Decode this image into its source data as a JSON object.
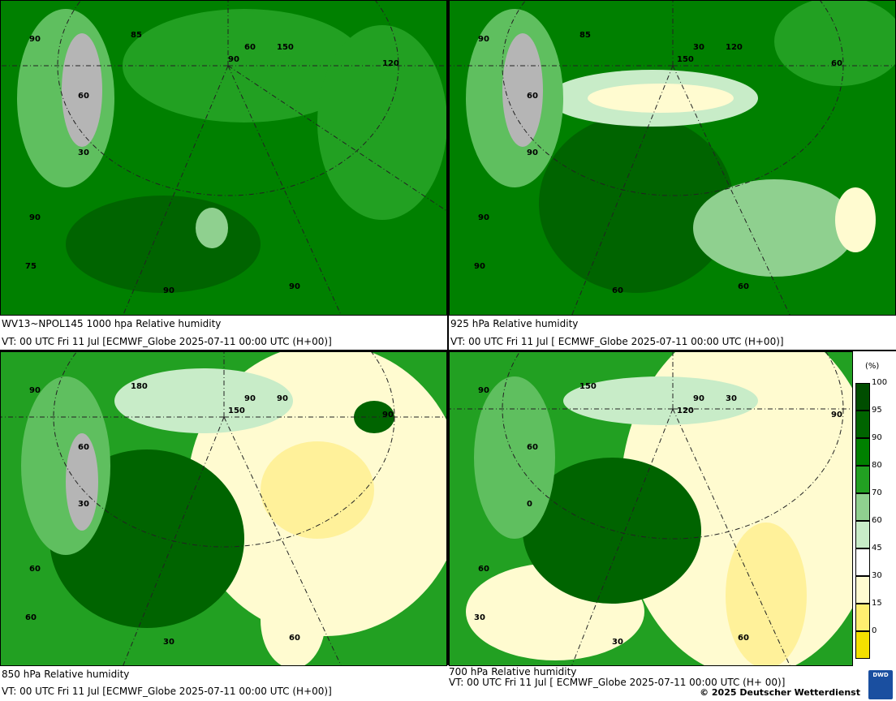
{
  "panels": [
    {
      "caption1": "WV13~NPOL145 1000 hpa Relative humidity",
      "caption2": "VT: 00 UTC Fri  11 Jul [ECMWF_Globe 2025-07-11 00:00 UTC  (H+00)]",
      "labels": [
        "90",
        "60",
        "90",
        "90",
        "90",
        "30",
        "75",
        "60",
        "120",
        "150",
        "90",
        "85"
      ]
    },
    {
      "caption1": "925 hPa Relative humidity",
      "caption2": "VT: 00 UTC Fri  11 Jul [ ECMWF_Globe 2025-07-11 00:00 UTC (H+00)]",
      "labels": [
        "90",
        "60",
        "90",
        "60",
        "60",
        "90",
        "90",
        "30",
        "60",
        "120",
        "150",
        "85"
      ]
    },
    {
      "caption1": "850 hPa  Relative humidity",
      "caption2": "VT: 00 UTC Fri  11 Jul [ECMWF_Globe 2025-07-11 00:00 UTC (H+00)]",
      "labels": [
        "90",
        "60",
        "60",
        "30",
        "60",
        "30",
        "60",
        "90",
        "90",
        "90",
        "150",
        "180"
      ]
    },
    {
      "caption1": "700 hPa Relative humidity",
      "caption2": "VT: 00 UTC Fri  11 Jul [ ECMWF_Globe 2025-07-11 00:00 UTC  (H+ 00)]",
      "labels": [
        "90",
        "60",
        "60",
        "30",
        "60",
        "0",
        "30",
        "90",
        "90",
        "30",
        "120",
        "150"
      ]
    }
  ],
  "copyright": "© 2025 Deutscher Wetterdienst",
  "logo_text": "DWD",
  "legend": {
    "unit": "(%)",
    "ticks": [
      "100",
      "95",
      "90",
      "80",
      "70",
      "60",
      "45",
      "30",
      "15",
      "0"
    ],
    "colors": [
      "#004d00",
      "#006400",
      "#008000",
      "#22a022",
      "#8fd08f",
      "#c8ecc8",
      "#ffffff",
      "#fffbd0",
      "#ffef70",
      "#f4e000"
    ]
  }
}
